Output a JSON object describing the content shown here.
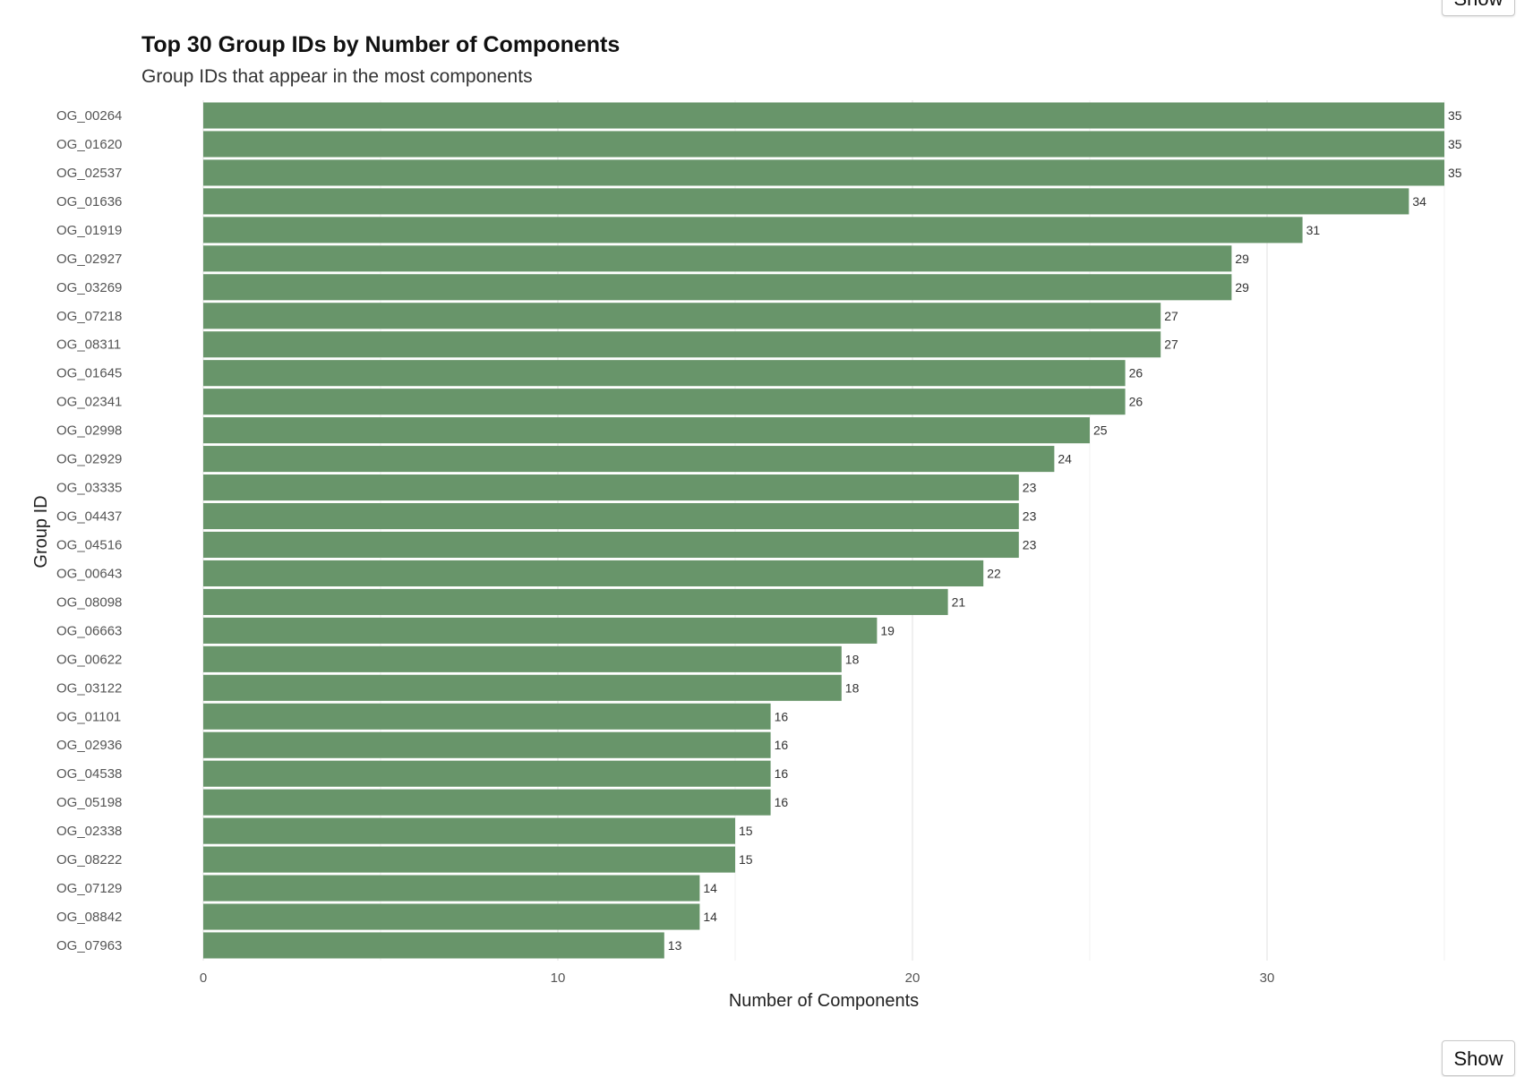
{
  "buttons": {
    "top_label": "Show",
    "bottom_label": "Show"
  },
  "chart_data": {
    "type": "bar",
    "orientation": "horizontal",
    "title": "Top 30 Group IDs by Number of Components",
    "subtitle": "Group IDs that appear in the most components",
    "xlabel": "Number of Components",
    "ylabel": "Group ID",
    "xlim": [
      0,
      35
    ],
    "xticks": [
      0,
      10,
      20,
      30
    ],
    "grid": true,
    "bar_color": "#68956A",
    "categories": [
      "OG_00264",
      "OG_01620",
      "OG_02537",
      "OG_01636",
      "OG_01919",
      "OG_02927",
      "OG_03269",
      "OG_07218",
      "OG_08311",
      "OG_01645",
      "OG_02341",
      "OG_02998",
      "OG_02929",
      "OG_03335",
      "OG_04437",
      "OG_04516",
      "OG_00643",
      "OG_08098",
      "OG_06663",
      "OG_00622",
      "OG_03122",
      "OG_01101",
      "OG_02936",
      "OG_04538",
      "OG_05198",
      "OG_02338",
      "OG_08222",
      "OG_07129",
      "OG_08842",
      "OG_07963"
    ],
    "values": [
      35,
      35,
      35,
      34,
      31,
      29,
      29,
      27,
      27,
      26,
      26,
      25,
      24,
      23,
      23,
      23,
      22,
      21,
      19,
      18,
      18,
      16,
      16,
      16,
      16,
      15,
      15,
      14,
      14,
      13
    ]
  }
}
